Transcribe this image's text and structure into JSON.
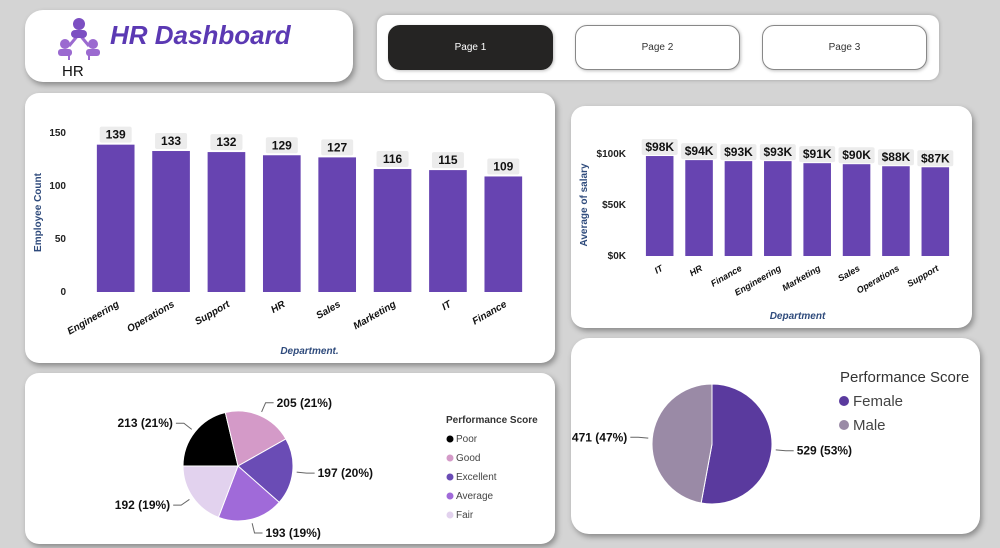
{
  "header": {
    "title": "HR Dashboard",
    "logo_label": "HR"
  },
  "nav": {
    "pages": [
      "Page 1",
      "Page 2",
      "Page 3"
    ],
    "active": 0
  },
  "colors": {
    "accent": "#5b39b3",
    "bar": "#6744b1",
    "nav_active": "#252423"
  },
  "chart_data": [
    {
      "type": "bar",
      "xlabel": "Department.",
      "ylabel": "Employee Count",
      "categories": [
        "Engineering",
        "Operations",
        "Support",
        "HR",
        "Sales",
        "Marketing",
        "IT",
        "Finance"
      ],
      "values": [
        139,
        133,
        132,
        129,
        127,
        116,
        115,
        109
      ],
      "ylim": [
        0,
        150
      ],
      "yticks": [
        0,
        50,
        100,
        150
      ],
      "data_labels": [
        "139",
        "133",
        "132",
        "129",
        "127",
        "116",
        "115",
        "109"
      ],
      "grid": false
    },
    {
      "type": "bar",
      "xlabel": "Department",
      "ylabel": "Average of salary",
      "categories": [
        "IT",
        "HR",
        "Finance",
        "Engineering",
        "Marketing",
        "Sales",
        "Operations",
        "Support"
      ],
      "values": [
        98,
        94,
        93,
        93,
        91,
        90,
        88,
        87
      ],
      "ylim": [
        0,
        100
      ],
      "yticks": [
        0,
        50,
        100
      ],
      "ytick_labels": [
        "$0K",
        "$50K",
        "$100K"
      ],
      "data_labels": [
        "$98K",
        "$94K",
        "$93K",
        "$93K",
        "$91K",
        "$90K",
        "$88K",
        "$87K"
      ],
      "grid": false
    },
    {
      "type": "pie",
      "legend_title": "Performance Score",
      "legend_position": "right",
      "labels": [
        "Poor",
        "Good",
        "Excellent",
        "Average",
        "Fair"
      ],
      "values": [
        213,
        205,
        197,
        193,
        192
      ],
      "colors": [
        "#000000",
        "#d49ac8",
        "#6a4cb5",
        "#a06ad9",
        "#e2d2ee"
      ],
      "data_labels": [
        "213 (21%)",
        "205 (21%)",
        "197 (20%)",
        "193 (19%)",
        "192 (19%)"
      ]
    },
    {
      "type": "pie",
      "legend_title": "Performance Score",
      "legend_position": "top-right",
      "labels": [
        "Female",
        "Male"
      ],
      "values": [
        529,
        471
      ],
      "colors": [
        "#5a3a9e",
        "#9a8aa6"
      ],
      "data_labels": [
        "529 (53%)",
        "471 (47%)"
      ]
    }
  ]
}
